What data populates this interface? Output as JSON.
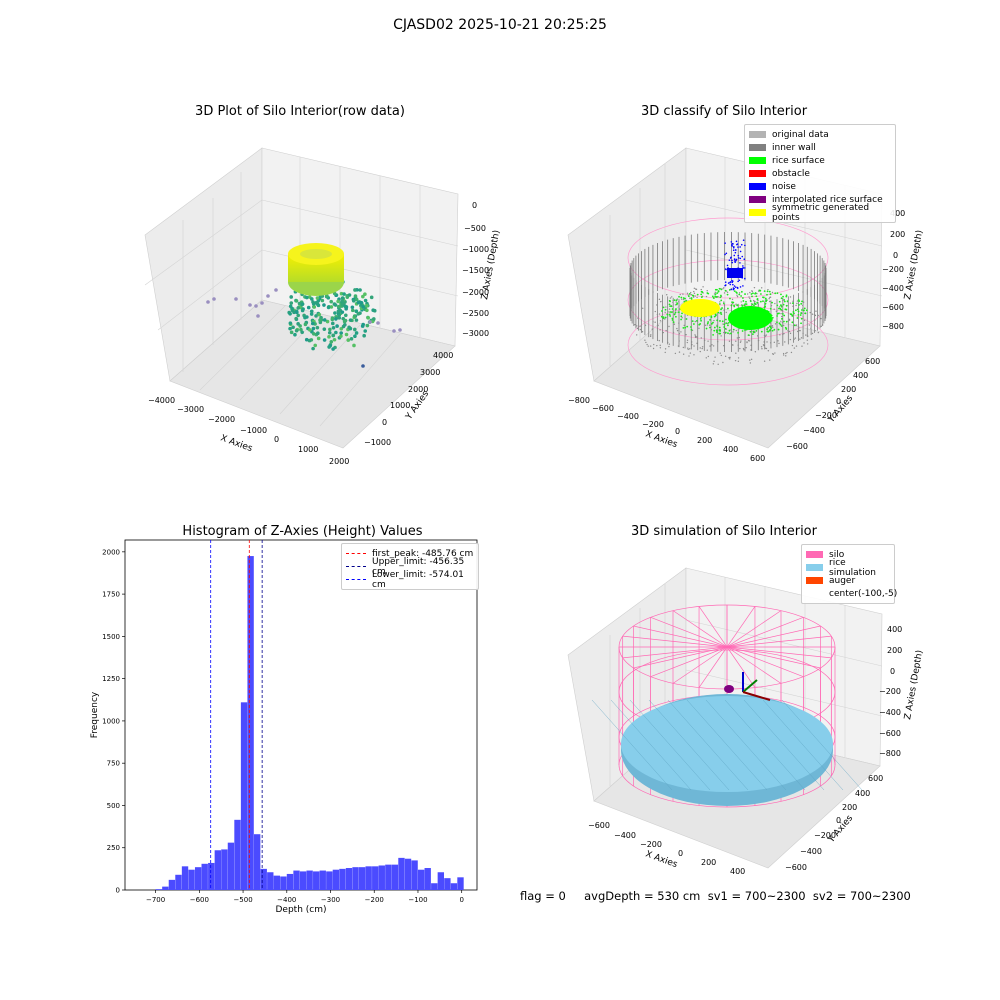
{
  "figure": {
    "suptitle": "CJASD02 2025-10-21 20:25:25"
  },
  "plots": {
    "raw": {
      "title": "3D Plot of Silo Interior(row data)",
      "xlabel": "X Axies",
      "ylabel": "Y Axies",
      "zlabel": "Z Axies (Depth)",
      "xticks": [
        "−4000",
        "−3000",
        "−2000",
        "−1000",
        "0",
        "1000",
        "2000"
      ],
      "yticks": [
        "−1000",
        "0",
        "1000",
        "2000",
        "3000",
        "4000"
      ],
      "zticks": [
        "0",
        "−500",
        "−1000",
        "−1500",
        "−2000",
        "−2500",
        "−3000"
      ]
    },
    "classify": {
      "title": "3D classify of Silo Interior",
      "xlabel": "X Axies",
      "ylabel": "Y Axies",
      "zlabel": "Z Axies (Depth)",
      "xticks": [
        "−800",
        "−600",
        "−400",
        "−200",
        "0",
        "200",
        "400",
        "600"
      ],
      "yticks": [
        "−600",
        "−400",
        "−200",
        "0",
        "200",
        "400",
        "600"
      ],
      "zticks": [
        "400",
        "200",
        "0",
        "−200",
        "−400",
        "−600",
        "−800"
      ],
      "legend": [
        {
          "label": "original data",
          "color": "#b3b3b3"
        },
        {
          "label": "inner wall",
          "color": "#808080"
        },
        {
          "label": "rice surface",
          "color": "#00ff00"
        },
        {
          "label": "obstacle",
          "color": "#ff0000"
        },
        {
          "label": "noise",
          "color": "#0000ff"
        },
        {
          "label": "interpolated rice surface",
          "color": "#800080"
        },
        {
          "label": "symmetric generated points",
          "color": "#ffff00"
        }
      ]
    },
    "simulation": {
      "title": "3D simulation of Silo Interior",
      "xlabel": "X Axies",
      "ylabel": "Y Axies",
      "zlabel": "Z Axies (Depth)",
      "xticks": [
        "−600",
        "−400",
        "−200",
        "0",
        "200",
        "400"
      ],
      "yticks": [
        "−600",
        "−400",
        "−200",
        "0",
        "200",
        "400",
        "600"
      ],
      "zticks": [
        "400",
        "200",
        "0",
        "−200",
        "−400",
        "−600",
        "−800"
      ],
      "legend": [
        {
          "label": "silo",
          "color": "#ff69b4"
        },
        {
          "label": "rice simulation",
          "color": "#87ceeb"
        },
        {
          "label": "auger",
          "color": "#ff4500"
        },
        {
          "label": "center(-100,-5)",
          "color": ""
        }
      ]
    }
  },
  "chart_data": [
    {
      "type": "bar",
      "title": "Histogram of Z-Axies (Height) Values",
      "xlabel": "Depth (cm)",
      "ylabel": "Frequency",
      "xlim": [
        -770,
        35
      ],
      "ylim": [
        0,
        2070
      ],
      "bar_color": "#4b4bff",
      "xticks": [
        -700,
        -600,
        -500,
        -400,
        -300,
        -200,
        -100,
        0
      ],
      "yticks": [
        0,
        250,
        500,
        750,
        1000,
        1250,
        1500,
        1750,
        2000
      ],
      "bins": [
        [
          -700,
          -685,
          5
        ],
        [
          -685,
          -670,
          20
        ],
        [
          -670,
          -655,
          60
        ],
        [
          -655,
          -640,
          90
        ],
        [
          -640,
          -625,
          140
        ],
        [
          -625,
          -610,
          120
        ],
        [
          -610,
          -595,
          135
        ],
        [
          -595,
          -580,
          155
        ],
        [
          -580,
          -565,
          160
        ],
        [
          -565,
          -550,
          235
        ],
        [
          -550,
          -535,
          240
        ],
        [
          -535,
          -520,
          280
        ],
        [
          -520,
          -505,
          415
        ],
        [
          -505,
          -490,
          1110
        ],
        [
          -490,
          -475,
          1975
        ],
        [
          -475,
          -460,
          330
        ],
        [
          -460,
          -445,
          125
        ],
        [
          -445,
          -430,
          105
        ],
        [
          -430,
          -415,
          85
        ],
        [
          -415,
          -400,
          80
        ],
        [
          -400,
          -385,
          95
        ],
        [
          -385,
          -370,
          115
        ],
        [
          -370,
          -355,
          110
        ],
        [
          -355,
          -340,
          115
        ],
        [
          -340,
          -325,
          110
        ],
        [
          -325,
          -310,
          115
        ],
        [
          -310,
          -295,
          110
        ],
        [
          -295,
          -280,
          120
        ],
        [
          -280,
          -265,
          125
        ],
        [
          -265,
          -250,
          130
        ],
        [
          -250,
          -235,
          135
        ],
        [
          -235,
          -220,
          135
        ],
        [
          -220,
          -205,
          140
        ],
        [
          -205,
          -190,
          140
        ],
        [
          -190,
          -175,
          145
        ],
        [
          -175,
          -160,
          150
        ],
        [
          -160,
          -145,
          150
        ],
        [
          -145,
          -130,
          190
        ],
        [
          -130,
          -115,
          185
        ],
        [
          -115,
          -100,
          175
        ],
        [
          -100,
          -85,
          120
        ],
        [
          -85,
          -70,
          130
        ],
        [
          -70,
          -55,
          40
        ],
        [
          -55,
          -40,
          105
        ],
        [
          -40,
          -25,
          70
        ],
        [
          -25,
          -10,
          40
        ],
        [
          -10,
          5,
          75
        ]
      ],
      "lines": [
        {
          "label": "first_peak: -485.76 cm",
          "x": -485.76,
          "color": "#ff0000"
        },
        {
          "label": "Upper_limit: -456.35 cm",
          "x": -456.35,
          "color": "#00008b"
        },
        {
          "label": "Lower_limit: -574.01 cm",
          "x": -574.01,
          "color": "#0000ff"
        }
      ]
    }
  ],
  "footer": {
    "text": "flag = 0     avgDepth = 530 cm  sv1 = 700~2300  sv2 = 700~2300"
  }
}
